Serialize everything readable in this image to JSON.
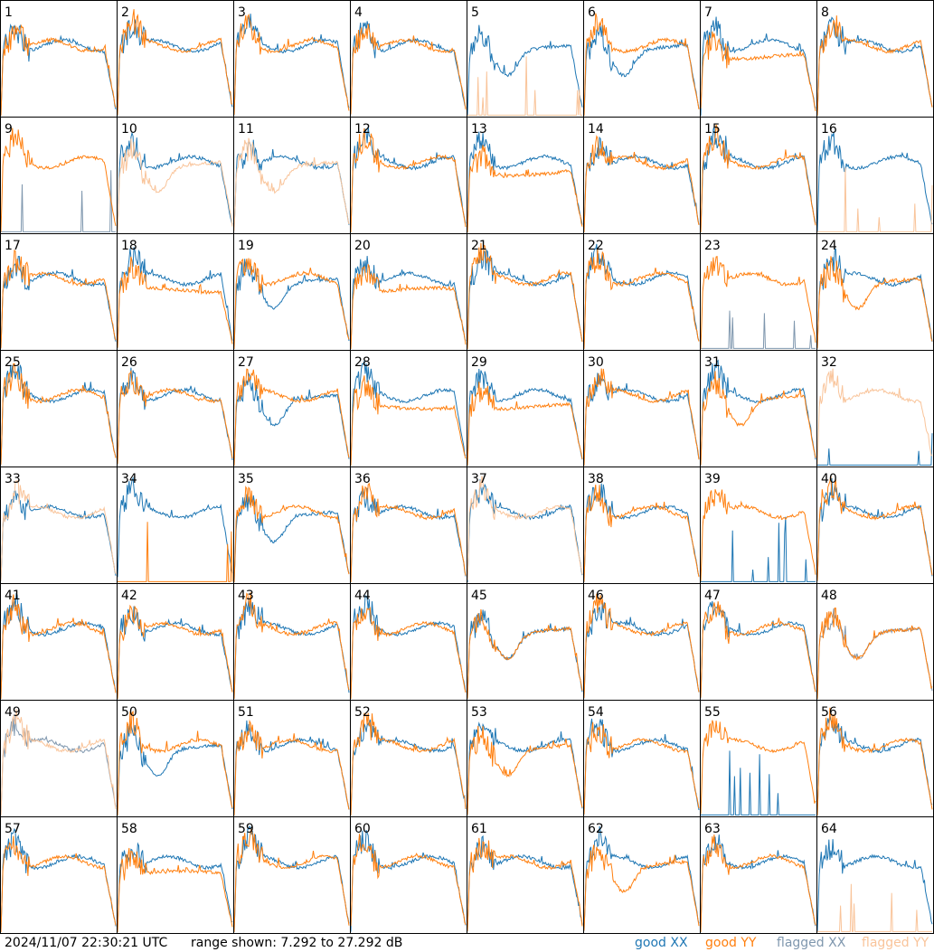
{
  "timestamp": "2024/11/07 22:30:21 UTC",
  "range_text": "range shown: 7.292 to 27.292 dB",
  "legend": [
    {
      "label": "good XX",
      "color": "#1f77b4"
    },
    {
      "label": "good YY",
      "color": "#ff7f0e"
    },
    {
      "label": "flagged XX",
      "color": "#7f97ae"
    },
    {
      "label": "flagged YY",
      "color": "#f9c49a"
    }
  ],
  "chart_data": {
    "type": "line",
    "ylim": [
      7.292,
      27.292
    ],
    "units": "dB",
    "panels": [
      {
        "n": 1,
        "xx": "g",
        "yy": "g",
        "xxs": "a",
        "yys": "a"
      },
      {
        "n": 2,
        "xx": "g",
        "yy": "g",
        "xxs": "a",
        "yys": "a"
      },
      {
        "n": 3,
        "xx": "g",
        "yy": "g",
        "xxs": "a",
        "yys": "a"
      },
      {
        "n": 4,
        "xx": "g",
        "yy": "g",
        "xxs": "a",
        "yys": "a"
      },
      {
        "n": 5,
        "xx": "g",
        "yy": "f",
        "xxs": "b",
        "yys": "z"
      },
      {
        "n": 6,
        "xx": "g",
        "yy": "g",
        "xxs": "b",
        "yys": "a"
      },
      {
        "n": 7,
        "xx": "g",
        "yy": "g",
        "xxs": "a",
        "yys": "d"
      },
      {
        "n": 8,
        "xx": "g",
        "yy": "g",
        "xxs": "a",
        "yys": "a"
      },
      {
        "n": 9,
        "xx": "f",
        "yy": "g",
        "xxs": "z",
        "yys": "a"
      },
      {
        "n": 10,
        "xx": "g",
        "yy": "f",
        "xxs": "a",
        "yys": "b"
      },
      {
        "n": 11,
        "xx": "g",
        "yy": "f",
        "xxs": "a",
        "yys": "b"
      },
      {
        "n": 12,
        "xx": "g",
        "yy": "g",
        "xxs": "a",
        "yys": "a"
      },
      {
        "n": 13,
        "xx": "g",
        "yy": "g",
        "xxs": "a",
        "yys": "d"
      },
      {
        "n": 14,
        "xx": "g",
        "yy": "g",
        "xxs": "a",
        "yys": "a"
      },
      {
        "n": 15,
        "xx": "g",
        "yy": "g",
        "xxs": "a",
        "yys": "a"
      },
      {
        "n": 16,
        "xx": "g",
        "yy": "f",
        "xxs": "a",
        "yys": "z"
      },
      {
        "n": 17,
        "xx": "g",
        "yy": "g",
        "xxs": "a",
        "yys": "a"
      },
      {
        "n": 18,
        "xx": "g",
        "yy": "g",
        "xxs": "a",
        "yys": "d"
      },
      {
        "n": 19,
        "xx": "g",
        "yy": "g",
        "xxs": "b",
        "yys": "a"
      },
      {
        "n": 20,
        "xx": "g",
        "yy": "g",
        "xxs": "a",
        "yys": "d"
      },
      {
        "n": 21,
        "xx": "g",
        "yy": "g",
        "xxs": "a",
        "yys": "a"
      },
      {
        "n": 22,
        "xx": "g",
        "yy": "g",
        "xxs": "a",
        "yys": "a"
      },
      {
        "n": 23,
        "xx": "f",
        "yy": "g",
        "xxs": "z",
        "yys": "a"
      },
      {
        "n": 24,
        "xx": "g",
        "yy": "g",
        "xxs": "a",
        "yys": "b"
      },
      {
        "n": 25,
        "xx": "g",
        "yy": "g",
        "xxs": "a",
        "yys": "a"
      },
      {
        "n": 26,
        "xx": "g",
        "yy": "g",
        "xxs": "a",
        "yys": "a"
      },
      {
        "n": 27,
        "xx": "g",
        "yy": "g",
        "xxs": "b",
        "yys": "a"
      },
      {
        "n": 28,
        "xx": "g",
        "yy": "g",
        "xxs": "a",
        "yys": "d"
      },
      {
        "n": 29,
        "xx": "g",
        "yy": "g",
        "xxs": "a",
        "yys": "d"
      },
      {
        "n": 30,
        "xx": "g",
        "yy": "g",
        "xxs": "a",
        "yys": "a"
      },
      {
        "n": 31,
        "xx": "g",
        "yy": "g",
        "xxs": "a",
        "yys": "b"
      },
      {
        "n": 32,
        "xx": "g",
        "yy": "f",
        "xxs": "z",
        "yys": "a"
      },
      {
        "n": 33,
        "xx": "g",
        "yy": "f",
        "xxs": "a",
        "yys": "a"
      },
      {
        "n": 34,
        "xx": "g",
        "yy": "g",
        "xxs": "a",
        "yys": "z"
      },
      {
        "n": 35,
        "xx": "g",
        "yy": "g",
        "xxs": "b",
        "yys": "a"
      },
      {
        "n": 36,
        "xx": "g",
        "yy": "g",
        "xxs": "a",
        "yys": "a"
      },
      {
        "n": 37,
        "xx": "g",
        "yy": "f",
        "xxs": "a",
        "yys": "a"
      },
      {
        "n": 38,
        "xx": "g",
        "yy": "g",
        "xxs": "a",
        "yys": "a"
      },
      {
        "n": 39,
        "xx": "g",
        "yy": "g",
        "xxs": "z",
        "yys": "a"
      },
      {
        "n": 40,
        "xx": "g",
        "yy": "g",
        "xxs": "a",
        "yys": "a"
      },
      {
        "n": 41,
        "xx": "g",
        "yy": "g",
        "xxs": "a",
        "yys": "a"
      },
      {
        "n": 42,
        "xx": "g",
        "yy": "g",
        "xxs": "a",
        "yys": "a"
      },
      {
        "n": 43,
        "xx": "g",
        "yy": "g",
        "xxs": "a",
        "yys": "a"
      },
      {
        "n": 44,
        "xx": "g",
        "yy": "g",
        "xxs": "a",
        "yys": "a"
      },
      {
        "n": 45,
        "xx": "g",
        "yy": "g",
        "xxs": "b",
        "yys": "b"
      },
      {
        "n": 46,
        "xx": "g",
        "yy": "g",
        "xxs": "a",
        "yys": "a"
      },
      {
        "n": 47,
        "xx": "g",
        "yy": "g",
        "xxs": "a",
        "yys": "a"
      },
      {
        "n": 48,
        "xx": "f",
        "yy": "g",
        "xxs": "b",
        "yys": "b"
      },
      {
        "n": 49,
        "xx": "f",
        "yy": "f",
        "xxs": "a",
        "yys": "a"
      },
      {
        "n": 50,
        "xx": "g",
        "yy": "g",
        "xxs": "b",
        "yys": "a"
      },
      {
        "n": 51,
        "xx": "g",
        "yy": "g",
        "xxs": "a",
        "yys": "a"
      },
      {
        "n": 52,
        "xx": "g",
        "yy": "g",
        "xxs": "a",
        "yys": "a"
      },
      {
        "n": 53,
        "xx": "g",
        "yy": "g",
        "xxs": "a",
        "yys": "b"
      },
      {
        "n": 54,
        "xx": "g",
        "yy": "g",
        "xxs": "a",
        "yys": "a"
      },
      {
        "n": 55,
        "xx": "g",
        "yy": "g",
        "xxs": "z",
        "yys": "a"
      },
      {
        "n": 56,
        "xx": "g",
        "yy": "g",
        "xxs": "a",
        "yys": "a"
      },
      {
        "n": 57,
        "xx": "g",
        "yy": "g",
        "xxs": "a",
        "yys": "a"
      },
      {
        "n": 58,
        "xx": "g",
        "yy": "g",
        "xxs": "a",
        "yys": "d"
      },
      {
        "n": 59,
        "xx": "g",
        "yy": "g",
        "xxs": "a",
        "yys": "a"
      },
      {
        "n": 60,
        "xx": "g",
        "yy": "g",
        "xxs": "a",
        "yys": "a"
      },
      {
        "n": 61,
        "xx": "g",
        "yy": "g",
        "xxs": "a",
        "yys": "a"
      },
      {
        "n": 62,
        "xx": "g",
        "yy": "g",
        "xxs": "a",
        "yys": "b"
      },
      {
        "n": 63,
        "xx": "g",
        "yy": "g",
        "xxs": "a",
        "yys": "a"
      },
      {
        "n": 64,
        "xx": "g",
        "yy": "f",
        "xxs": "a",
        "yys": "z"
      }
    ]
  }
}
